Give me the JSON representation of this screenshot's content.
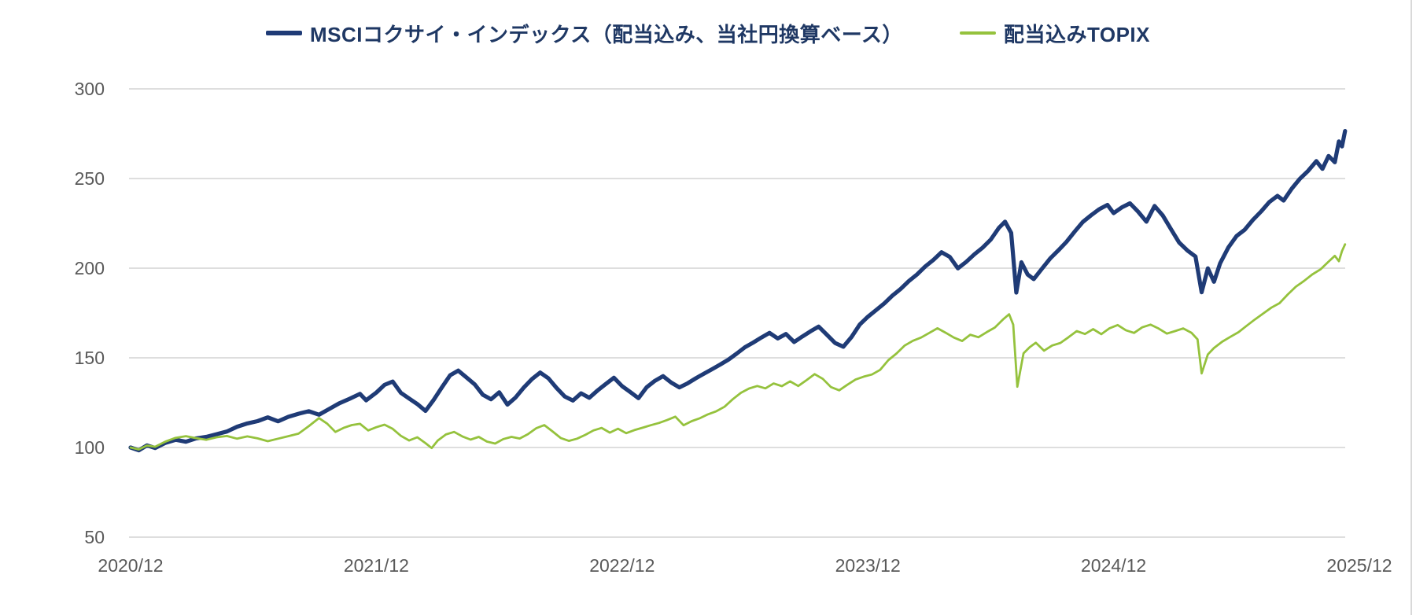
{
  "legend": {
    "text_color": "#1f3864",
    "items": [
      {
        "label": "MSCIコクサイ・インデックス（配当込み、当社円換算ベース）",
        "color": "#1f3b76",
        "marker_height": 6
      },
      {
        "label": "配当込みTOPIX",
        "color": "#95c23d",
        "marker_height": 3.5
      }
    ]
  },
  "chart_data": {
    "type": "line",
    "title": "",
    "xlabel": "",
    "ylabel": "",
    "x": {
      "unit": "months since 2020/12",
      "range": [
        0,
        60.7
      ],
      "tick_labels": [
        "2020/12",
        "2021/12",
        "2022/12",
        "2023/12",
        "2024/12",
        "2025/12"
      ],
      "tick_positions_months": [
        0,
        12,
        24,
        36,
        48,
        60
      ]
    },
    "y": {
      "ticks": [
        300,
        250,
        200,
        150,
        100,
        50
      ],
      "range": [
        50,
        300
      ],
      "gridlines": true
    },
    "legend_position": "top-center",
    "plot_colors": {
      "background": "#ffffff",
      "gridline": "#d9d9d9",
      "axis_label": "#595959",
      "frame_border": "#d9d9d9"
    },
    "series": [
      {
        "name": "MSCIコクサイ・インデックス（配当込み、当社円換算ベース）",
        "color": "#1f3b76",
        "stroke_width": 5.2,
        "points": [
          [
            0,
            100
          ],
          [
            0.4,
            98.4
          ],
          [
            0.8,
            101.2
          ],
          [
            1.2,
            99.7
          ],
          [
            1.7,
            102.6
          ],
          [
            2.2,
            104.3
          ],
          [
            2.7,
            103.2
          ],
          [
            3.2,
            105.1
          ],
          [
            3.7,
            105.9
          ],
          [
            4.2,
            107.4
          ],
          [
            4.7,
            108.9
          ],
          [
            5.2,
            111.6
          ],
          [
            5.7,
            113.4
          ],
          [
            6.2,
            114.7
          ],
          [
            6.7,
            116.8
          ],
          [
            7.2,
            114.6
          ],
          [
            7.7,
            117.1
          ],
          [
            8.2,
            118.8
          ],
          [
            8.7,
            120.2
          ],
          [
            9.2,
            118.3
          ],
          [
            9.7,
            121.5
          ],
          [
            10.2,
            124.7
          ],
          [
            10.7,
            127.2
          ],
          [
            11.2,
            129.9
          ],
          [
            11.5,
            126.3
          ],
          [
            12,
            130.6
          ],
          [
            12.4,
            134.9
          ],
          [
            12.8,
            136.8
          ],
          [
            13.2,
            130.5
          ],
          [
            13.6,
            127.3
          ],
          [
            14,
            124.2
          ],
          [
            14.4,
            120.4
          ],
          [
            14.8,
            126.6
          ],
          [
            15.2,
            133.5
          ],
          [
            15.6,
            140.2
          ],
          [
            16,
            142.9
          ],
          [
            16.4,
            139.1
          ],
          [
            16.8,
            135.2
          ],
          [
            17.2,
            129.4
          ],
          [
            17.6,
            126.9
          ],
          [
            18,
            130.8
          ],
          [
            18.4,
            123.9
          ],
          [
            18.8,
            127.9
          ],
          [
            19.2,
            133.4
          ],
          [
            19.6,
            138.2
          ],
          [
            20,
            141.8
          ],
          [
            20.4,
            138.6
          ],
          [
            20.8,
            133.2
          ],
          [
            21.2,
            128.4
          ],
          [
            21.6,
            126.2
          ],
          [
            22,
            130.2
          ],
          [
            22.4,
            127.7
          ],
          [
            22.8,
            131.8
          ],
          [
            23.2,
            135.4
          ],
          [
            23.6,
            138.9
          ],
          [
            24,
            134.2
          ],
          [
            24.4,
            130.9
          ],
          [
            24.8,
            127.5
          ],
          [
            25.2,
            133.6
          ],
          [
            25.6,
            137.2
          ],
          [
            26,
            139.8
          ],
          [
            26.4,
            136.2
          ],
          [
            26.8,
            133.5
          ],
          [
            27.2,
            135.8
          ],
          [
            27.6,
            138.6
          ],
          [
            28,
            141.2
          ],
          [
            28.4,
            143.7
          ],
          [
            28.8,
            146.3
          ],
          [
            29.2,
            149.1
          ],
          [
            29.6,
            152.4
          ],
          [
            30,
            155.9
          ],
          [
            30.4,
            158.5
          ],
          [
            30.8,
            161.3
          ],
          [
            31.2,
            163.9
          ],
          [
            31.6,
            160.8
          ],
          [
            32,
            163.3
          ],
          [
            32.4,
            158.8
          ],
          [
            32.8,
            161.9
          ],
          [
            33.2,
            164.8
          ],
          [
            33.6,
            167.4
          ],
          [
            34,
            162.9
          ],
          [
            34.4,
            158.3
          ],
          [
            34.8,
            156.2
          ],
          [
            35.2,
            161.6
          ],
          [
            35.6,
            168.5
          ],
          [
            36,
            172.9
          ],
          [
            36.4,
            176.6
          ],
          [
            36.8,
            180.3
          ],
          [
            37.2,
            184.7
          ],
          [
            37.6,
            188.4
          ],
          [
            38,
            192.8
          ],
          [
            38.4,
            196.5
          ],
          [
            38.8,
            200.9
          ],
          [
            39.2,
            204.6
          ],
          [
            39.6,
            208.9
          ],
          [
            40,
            206.3
          ],
          [
            40.4,
            199.9
          ],
          [
            40.8,
            203.5
          ],
          [
            41.2,
            207.7
          ],
          [
            41.6,
            211.4
          ],
          [
            42,
            215.9
          ],
          [
            42.4,
            222.5
          ],
          [
            42.7,
            225.9
          ],
          [
            43,
            219.7
          ],
          [
            43.25,
            186.4
          ],
          [
            43.5,
            203.3
          ],
          [
            43.8,
            196.5
          ],
          [
            44.1,
            193.9
          ],
          [
            44.5,
            199.7
          ],
          [
            44.9,
            205.4
          ],
          [
            45.3,
            209.9
          ],
          [
            45.7,
            214.7
          ],
          [
            46.1,
            220.4
          ],
          [
            46.5,
            225.8
          ],
          [
            46.9,
            229.5
          ],
          [
            47.3,
            232.9
          ],
          [
            47.7,
            235.3
          ],
          [
            48,
            230.7
          ],
          [
            48.4,
            233.9
          ],
          [
            48.8,
            236.2
          ],
          [
            49.2,
            231.5
          ],
          [
            49.6,
            225.9
          ],
          [
            50,
            234.7
          ],
          [
            50.4,
            229.4
          ],
          [
            50.8,
            221.8
          ],
          [
            51.2,
            214.3
          ],
          [
            51.6,
            209.9
          ],
          [
            52,
            206.5
          ],
          [
            52.3,
            186.6
          ],
          [
            52.6,
            199.9
          ],
          [
            52.9,
            192.4
          ],
          [
            53.2,
            202.7
          ],
          [
            53.6,
            211.5
          ],
          [
            54,
            217.9
          ],
          [
            54.4,
            221.4
          ],
          [
            54.8,
            226.9
          ],
          [
            55.2,
            231.6
          ],
          [
            55.6,
            236.9
          ],
          [
            56,
            240.3
          ],
          [
            56.3,
            237.7
          ],
          [
            56.7,
            244.4
          ],
          [
            57.1,
            249.9
          ],
          [
            57.5,
            254.3
          ],
          [
            57.9,
            259.7
          ],
          [
            58.2,
            255.4
          ],
          [
            58.5,
            262.6
          ],
          [
            58.8,
            259.1
          ],
          [
            59,
            270.7
          ],
          [
            59.15,
            267.9
          ],
          [
            59.3,
            276.5
          ]
        ]
      },
      {
        "name": "配当込みTOPIX",
        "color": "#95c23d",
        "stroke_width": 2.8,
        "points": [
          [
            0,
            100
          ],
          [
            0.4,
            98.9
          ],
          [
            0.8,
            101.1
          ],
          [
            1.2,
            100.4
          ],
          [
            1.7,
            103.3
          ],
          [
            2.2,
            105.4
          ],
          [
            2.7,
            106.3
          ],
          [
            3.2,
            105.2
          ],
          [
            3.7,
            104.3
          ],
          [
            4.2,
            105.7
          ],
          [
            4.7,
            106.4
          ],
          [
            5.2,
            104.9
          ],
          [
            5.7,
            106.2
          ],
          [
            6.2,
            105.1
          ],
          [
            6.7,
            103.5
          ],
          [
            7.2,
            104.9
          ],
          [
            7.7,
            106.3
          ],
          [
            8.2,
            107.7
          ],
          [
            8.7,
            111.9
          ],
          [
            9.2,
            116.4
          ],
          [
            9.6,
            113.3
          ],
          [
            10,
            108.7
          ],
          [
            10.4,
            110.9
          ],
          [
            10.8,
            112.5
          ],
          [
            11.2,
            113.2
          ],
          [
            11.6,
            109.5
          ],
          [
            12,
            111.3
          ],
          [
            12.4,
            112.7
          ],
          [
            12.8,
            110.4
          ],
          [
            13.2,
            106.5
          ],
          [
            13.6,
            103.9
          ],
          [
            14,
            105.7
          ],
          [
            14.4,
            102.4
          ],
          [
            14.7,
            99.7
          ],
          [
            15,
            103.9
          ],
          [
            15.4,
            107.3
          ],
          [
            15.8,
            108.7
          ],
          [
            16.2,
            106.2
          ],
          [
            16.6,
            104.4
          ],
          [
            17,
            105.9
          ],
          [
            17.4,
            103.3
          ],
          [
            17.8,
            102.2
          ],
          [
            18.2,
            104.7
          ],
          [
            18.6,
            105.9
          ],
          [
            19,
            105
          ],
          [
            19.4,
            107.4
          ],
          [
            19.8,
            110.7
          ],
          [
            20.2,
            112.5
          ],
          [
            20.6,
            109
          ],
          [
            21,
            105.3
          ],
          [
            21.4,
            103.7
          ],
          [
            21.8,
            104.9
          ],
          [
            22.2,
            107
          ],
          [
            22.6,
            109.5
          ],
          [
            23,
            110.9
          ],
          [
            23.4,
            108.3
          ],
          [
            23.8,
            110.5
          ],
          [
            24.2,
            108
          ],
          [
            24.6,
            109.7
          ],
          [
            25,
            111
          ],
          [
            25.4,
            112.4
          ],
          [
            25.8,
            113.7
          ],
          [
            26.2,
            115.3
          ],
          [
            26.6,
            117.2
          ],
          [
            27,
            112.4
          ],
          [
            27.4,
            114.7
          ],
          [
            27.8,
            116.3
          ],
          [
            28.2,
            118.5
          ],
          [
            28.6,
            120.2
          ],
          [
            29,
            122.7
          ],
          [
            29.4,
            126.9
          ],
          [
            29.8,
            130.5
          ],
          [
            30.2,
            132.9
          ],
          [
            30.6,
            134.3
          ],
          [
            31,
            133
          ],
          [
            31.4,
            135.7
          ],
          [
            31.8,
            134.2
          ],
          [
            32.2,
            136.9
          ],
          [
            32.6,
            134.3
          ],
          [
            33,
            137.5
          ],
          [
            33.4,
            140.9
          ],
          [
            33.8,
            138.3
          ],
          [
            34.2,
            133.7
          ],
          [
            34.6,
            131.9
          ],
          [
            35,
            135
          ],
          [
            35.4,
            137.9
          ],
          [
            35.8,
            139.5
          ],
          [
            36.2,
            140.7
          ],
          [
            36.6,
            143.3
          ],
          [
            37,
            148.7
          ],
          [
            37.4,
            152.4
          ],
          [
            37.8,
            156.9
          ],
          [
            38.2,
            159.5
          ],
          [
            38.6,
            161.3
          ],
          [
            39,
            163.9
          ],
          [
            39.4,
            166.5
          ],
          [
            39.8,
            164
          ],
          [
            40.2,
            161.3
          ],
          [
            40.6,
            159.4
          ],
          [
            41,
            162.9
          ],
          [
            41.4,
            161.5
          ],
          [
            41.8,
            164.3
          ],
          [
            42.2,
            166.9
          ],
          [
            42.6,
            171.4
          ],
          [
            42.9,
            174.3
          ],
          [
            43.1,
            168.5
          ],
          [
            43.3,
            133.9
          ],
          [
            43.6,
            152.5
          ],
          [
            43.9,
            155.9
          ],
          [
            44.2,
            158.4
          ],
          [
            44.6,
            154
          ],
          [
            45,
            156.9
          ],
          [
            45.4,
            158.3
          ],
          [
            45.8,
            161.5
          ],
          [
            46.2,
            164.9
          ],
          [
            46.6,
            163.3
          ],
          [
            47,
            166
          ],
          [
            47.4,
            163.2
          ],
          [
            47.8,
            166.5
          ],
          [
            48.2,
            168.3
          ],
          [
            48.6,
            165.4
          ],
          [
            49,
            163.9
          ],
          [
            49.4,
            167
          ],
          [
            49.8,
            168.5
          ],
          [
            50.2,
            166.3
          ],
          [
            50.6,
            163.5
          ],
          [
            51,
            164.9
          ],
          [
            51.4,
            166.4
          ],
          [
            51.8,
            164
          ],
          [
            52.1,
            160.3
          ],
          [
            52.3,
            141.3
          ],
          [
            52.6,
            151.9
          ],
          [
            52.9,
            155.5
          ],
          [
            53.3,
            159
          ],
          [
            53.7,
            161.7
          ],
          [
            54.1,
            164.3
          ],
          [
            54.5,
            167.9
          ],
          [
            54.9,
            171.4
          ],
          [
            55.3,
            174.7
          ],
          [
            55.7,
            178
          ],
          [
            56.1,
            180.5
          ],
          [
            56.5,
            185.3
          ],
          [
            56.9,
            189.7
          ],
          [
            57.3,
            192.9
          ],
          [
            57.7,
            196.5
          ],
          [
            58.1,
            199.3
          ],
          [
            58.5,
            203.7
          ],
          [
            58.8,
            206.9
          ],
          [
            59,
            203.9
          ],
          [
            59.15,
            209.5
          ],
          [
            59.3,
            213.3
          ]
        ]
      }
    ]
  }
}
